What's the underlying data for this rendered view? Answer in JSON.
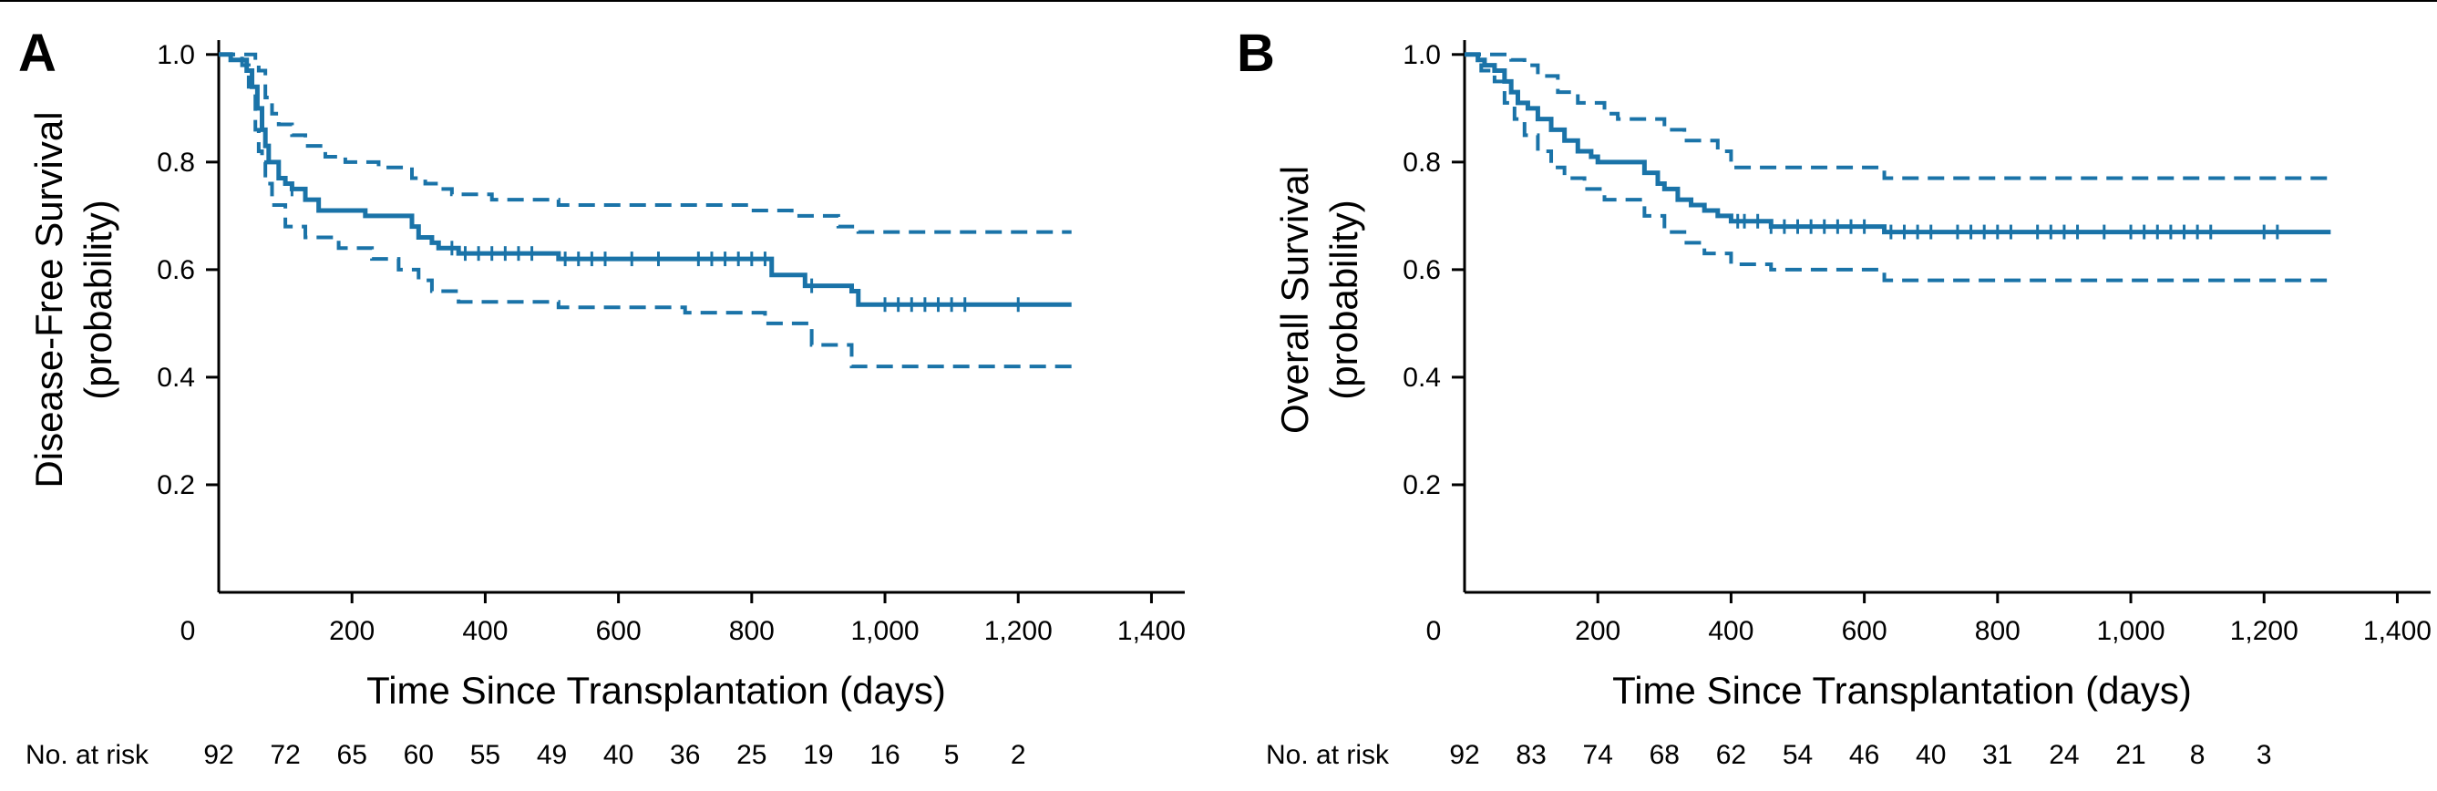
{
  "colors": {
    "curve": "#1a73a8",
    "axis": "#000000"
  },
  "risk_label": "No. at risk",
  "chart_data": [
    {
      "type": "line",
      "panel_letter": "A",
      "xlabel": "Time Since Transplantation (days)",
      "ylabel_line1": "Disease-Free Survival",
      "ylabel_line2": "(probability)",
      "xlim": [
        0,
        1450
      ],
      "ylim": [
        0,
        1.02
      ],
      "xticks": [
        0,
        200,
        400,
        600,
        800,
        1000,
        1200,
        1400
      ],
      "xtick_labels": [
        "0",
        "200",
        "400",
        "600",
        "800",
        "1,000",
        "1,200",
        "1,400"
      ],
      "yticks": [
        0.2,
        0.4,
        0.6,
        0.8,
        1.0
      ],
      "ytick_labels": [
        "0.2",
        "0.4",
        "0.6",
        "0.8",
        "1.0"
      ],
      "risk_x": [
        0,
        100,
        200,
        300,
        400,
        500,
        600,
        700,
        800,
        900,
        1000,
        1100,
        1200
      ],
      "risk_values": [
        "92",
        "72",
        "65",
        "60",
        "55",
        "49",
        "40",
        "36",
        "25",
        "19",
        "16",
        "5",
        "2"
      ],
      "series": [
        {
          "role": "estimate",
          "style": "solid",
          "x": [
            0,
            18,
            42,
            50,
            58,
            65,
            70,
            75,
            90,
            100,
            110,
            130,
            150,
            220,
            290,
            300,
            320,
            330,
            360,
            510,
            830,
            880,
            900,
            950,
            960,
            1280
          ],
          "y": [
            1.0,
            0.99,
            0.97,
            0.94,
            0.9,
            0.86,
            0.83,
            0.8,
            0.77,
            0.76,
            0.75,
            0.73,
            0.71,
            0.7,
            0.68,
            0.66,
            0.65,
            0.64,
            0.63,
            0.62,
            0.59,
            0.57,
            0.57,
            0.56,
            0.535,
            0.535
          ]
        },
        {
          "role": "upper",
          "style": "dashed",
          "x": [
            0,
            50,
            55,
            60,
            70,
            80,
            90,
            110,
            130,
            160,
            190,
            240,
            290,
            310,
            330,
            350,
            410,
            510,
            800,
            860,
            930,
            960,
            1280
          ],
          "y": [
            1.0,
            1.0,
            0.99,
            0.97,
            0.92,
            0.89,
            0.87,
            0.85,
            0.83,
            0.81,
            0.8,
            0.79,
            0.77,
            0.76,
            0.75,
            0.74,
            0.73,
            0.72,
            0.71,
            0.7,
            0.68,
            0.67,
            0.67
          ]
        },
        {
          "role": "lower",
          "style": "dashed",
          "x": [
            0,
            35,
            45,
            55,
            60,
            65,
            70,
            80,
            100,
            130,
            180,
            230,
            270,
            300,
            320,
            360,
            510,
            700,
            820,
            890,
            950,
            1280
          ],
          "y": [
            1.0,
            0.98,
            0.94,
            0.86,
            0.82,
            0.8,
            0.76,
            0.72,
            0.68,
            0.66,
            0.64,
            0.62,
            0.6,
            0.58,
            0.56,
            0.54,
            0.53,
            0.52,
            0.5,
            0.46,
            0.42,
            0.42
          ]
        }
      ],
      "censor_x": [
        110,
        350,
        370,
        390,
        410,
        430,
        450,
        470,
        520,
        540,
        560,
        580,
        620,
        660,
        720,
        740,
        760,
        780,
        800,
        820,
        890,
        1000,
        1020,
        1040,
        1060,
        1080,
        1100,
        1120,
        1200
      ]
    },
    {
      "type": "line",
      "panel_letter": "B",
      "xlabel": "Time Since Transplantation (days)",
      "ylabel_line1": "Overall Survival",
      "ylabel_line2": "(probability)",
      "xlim": [
        0,
        1450
      ],
      "ylim": [
        0,
        1.02
      ],
      "xticks": [
        0,
        200,
        400,
        600,
        800,
        1000,
        1200,
        1400
      ],
      "xtick_labels": [
        "0",
        "200",
        "400",
        "600",
        "800",
        "1,000",
        "1,200",
        "1,400"
      ],
      "yticks": [
        0.2,
        0.4,
        0.6,
        0.8,
        1.0
      ],
      "ytick_labels": [
        "0.2",
        "0.4",
        "0.6",
        "0.8",
        "1.0"
      ],
      "risk_x": [
        0,
        100,
        200,
        300,
        400,
        500,
        600,
        700,
        800,
        900,
        1000,
        1100,
        1200
      ],
      "risk_values": [
        "92",
        "83",
        "74",
        "68",
        "62",
        "54",
        "46",
        "40",
        "31",
        "24",
        "21",
        "8",
        "3"
      ],
      "series": [
        {
          "role": "estimate",
          "style": "solid",
          "x": [
            0,
            20,
            30,
            45,
            60,
            70,
            80,
            95,
            110,
            130,
            150,
            170,
            190,
            200,
            270,
            290,
            300,
            320,
            340,
            360,
            380,
            400,
            460,
            630,
            1300
          ],
          "y": [
            1.0,
            0.99,
            0.98,
            0.97,
            0.95,
            0.93,
            0.91,
            0.9,
            0.88,
            0.86,
            0.84,
            0.82,
            0.81,
            0.8,
            0.78,
            0.76,
            0.75,
            0.73,
            0.72,
            0.71,
            0.7,
            0.69,
            0.68,
            0.67,
            0.67
          ]
        },
        {
          "role": "upper",
          "style": "dashed",
          "x": [
            0,
            60,
            70,
            90,
            110,
            140,
            170,
            210,
            230,
            300,
            330,
            380,
            400,
            630,
            1300
          ],
          "y": [
            1.0,
            1.0,
            0.99,
            0.98,
            0.96,
            0.93,
            0.91,
            0.89,
            0.88,
            0.86,
            0.84,
            0.82,
            0.79,
            0.77,
            0.77
          ]
        },
        {
          "role": "lower",
          "style": "dashed",
          "x": [
            0,
            25,
            45,
            60,
            75,
            90,
            110,
            130,
            150,
            180,
            210,
            230,
            270,
            300,
            330,
            360,
            400,
            460,
            630,
            1300
          ],
          "y": [
            1.0,
            0.97,
            0.95,
            0.91,
            0.88,
            0.85,
            0.82,
            0.79,
            0.77,
            0.75,
            0.73,
            0.73,
            0.7,
            0.67,
            0.65,
            0.63,
            0.61,
            0.6,
            0.58,
            0.58
          ]
        }
      ],
      "censor_x": [
        410,
        420,
        440,
        460,
        480,
        500,
        520,
        540,
        560,
        580,
        600,
        640,
        660,
        680,
        700,
        740,
        760,
        780,
        800,
        820,
        860,
        880,
        900,
        920,
        960,
        1000,
        1020,
        1040,
        1060,
        1080,
        1100,
        1120,
        1200,
        1220
      ]
    }
  ]
}
